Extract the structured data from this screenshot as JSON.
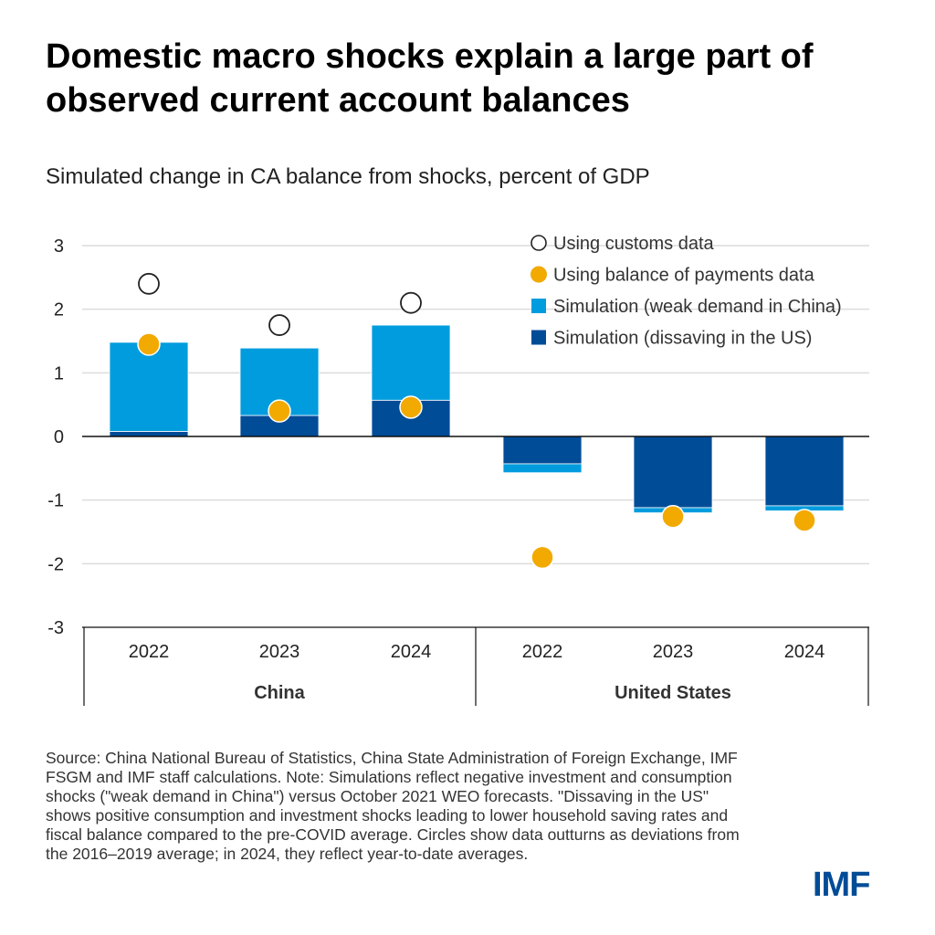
{
  "title": "Domestic macro shocks explain a large part of observed current account balances",
  "subtitle": "Simulated change in CA balance from shocks, percent of GDP",
  "note": "Source: China National Bureau of Statistics, China State Administration of Foreign Exchange, IMF FSGM and IMF staff calculations. Note: Simulations reflect negative investment and consumption shocks (\"weak demand in China\") versus October 2021 WEO forecasts. \"Dissaving in the US\" shows positive consumption and investment shocks leading to lower household saving rates and fiscal balance compared to the pre-COVID average. Circles show data outturns as deviations from the 2016–2019 average; in 2024, they reflect year-to-date averages.",
  "logo": "IMF",
  "colors": {
    "weak_demand": "#009cde",
    "dissaving": "#004c97",
    "bop": "#f2a900",
    "customs": "#ffffff"
  },
  "chart_data": {
    "type": "bar",
    "stacked": true,
    "ylim": [
      -3,
      3
    ],
    "yticks": [
      "3",
      "2",
      "1",
      "0",
      "-1",
      "-2",
      "-3"
    ],
    "grid": true,
    "legend_placement": "top-right",
    "groups": [
      {
        "label": "China",
        "categories": [
          "2022",
          "2023",
          "2024"
        ]
      },
      {
        "label": "United States",
        "categories": [
          "2022",
          "2023",
          "2024"
        ]
      }
    ],
    "series": [
      {
        "name": "Simulation (dissaving in the US)",
        "values": [
          0.08,
          0.33,
          0.57,
          -0.43,
          -1.12,
          -1.09
        ]
      },
      {
        "name": "Simulation (weak demand in China)",
        "values": [
          1.4,
          1.06,
          1.18,
          -0.14,
          -0.08,
          -0.08
        ]
      }
    ],
    "points": [
      {
        "name": "Using customs data",
        "values": [
          2.4,
          1.75,
          2.1,
          null,
          null,
          null
        ]
      },
      {
        "name": "Using balance of payments data",
        "values": [
          1.45,
          0.4,
          0.46,
          -1.9,
          -1.26,
          -1.32
        ]
      }
    ]
  }
}
